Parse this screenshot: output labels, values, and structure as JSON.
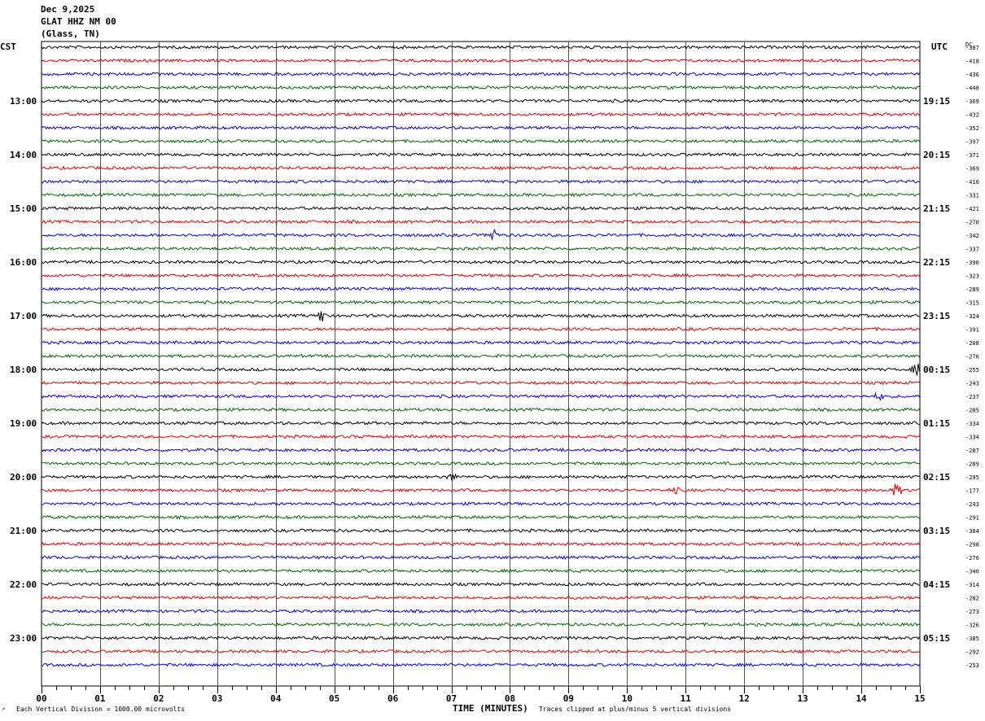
{
  "header": {
    "date": "Dec 9,2025",
    "station": "GLAT HHZ NM 00",
    "location": "(Glass, TN)"
  },
  "labels": {
    "left_timezone": "CST",
    "right_timezone": "UTC",
    "dc_header": "DC"
  },
  "footer": {
    "scale_note": "Each Vertical Division = 1000.00 microvolts",
    "clip_note": "Traces clipped at plus/minus 5 vertical divisions",
    "corner_mark": "↗"
  },
  "colors": {
    "trace_cycle": [
      "#000000",
      "#dd0000",
      "#0000dd",
      "#006600"
    ],
    "grid": "#000000"
  },
  "chart_data": {
    "type": "line",
    "title": "Dec 9,2025 GLAT HHZ NM 00 (Glass, TN)",
    "xlabel": "TIME (MINUTES)",
    "xlim": [
      0,
      15
    ],
    "x_ticks": [
      "00",
      "01",
      "02",
      "03",
      "04",
      "05",
      "06",
      "07",
      "08",
      "09",
      "10",
      "11",
      "12",
      "13",
      "14",
      "15"
    ],
    "trace_interval_minutes": 15,
    "left_hour_labels": [
      "13:00",
      "14:00",
      "15:00",
      "16:00",
      "17:00",
      "18:00",
      "19:00",
      "20:00",
      "21:00",
      "22:00",
      "23:00"
    ],
    "right_hour_labels": [
      "19:15",
      "20:15",
      "21:15",
      "22:15",
      "23:15",
      "00:15",
      "01:15",
      "02:15",
      "03:15",
      "04:15",
      "05:15"
    ],
    "dc_offsets": [
      -387,
      -418,
      -436,
      -448,
      -369,
      -432,
      -352,
      -397,
      -371,
      -369,
      -410,
      -331,
      -421,
      -270,
      -342,
      -337,
      -390,
      -323,
      -289,
      -315,
      -324,
      -391,
      -208,
      -276,
      -255,
      -243,
      -237,
      -285,
      -334,
      -334,
      -287,
      -289,
      -295,
      -177,
      -243,
      -291,
      -304,
      -298,
      -276,
      -340,
      -314,
      -282,
      -273,
      -326,
      -385,
      -292,
      -253
    ],
    "traces": 47,
    "events": [
      {
        "trace": 14,
        "minute": 7.7,
        "amplitude": 2.5
      },
      {
        "trace": 20,
        "minute": 4.8,
        "amplitude": 2.2
      },
      {
        "trace": 24,
        "minute": 14.95,
        "amplitude": 1.8
      },
      {
        "trace": 26,
        "minute": 14.3,
        "amplitude": 1.0
      },
      {
        "trace": 32,
        "minute": 7.0,
        "amplitude": 1.0
      },
      {
        "trace": 33,
        "minute": 14.6,
        "amplitude": 2.0
      },
      {
        "trace": 33,
        "minute": 10.8,
        "amplitude": 1.0
      }
    ]
  }
}
